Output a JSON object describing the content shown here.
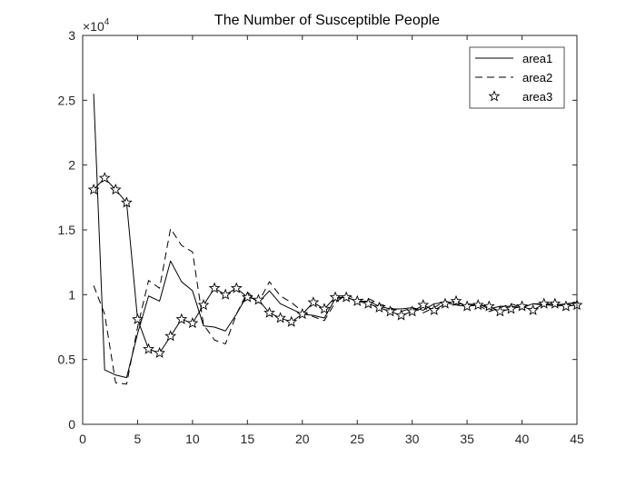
{
  "chart_data": {
    "type": "line",
    "title": "The Number of Susceptible People",
    "xlabel": "",
    "ylabel": "",
    "xlim": [
      0,
      45
    ],
    "ylim": [
      0,
      30000
    ],
    "xticks": [
      0,
      5,
      10,
      15,
      20,
      25,
      30,
      35,
      40,
      45
    ],
    "yticks": [
      0,
      5000,
      10000,
      15000,
      20000,
      25000,
      30000
    ],
    "ytick_labels": [
      "0",
      "0.5",
      "1",
      "1.5",
      "2",
      "2.5",
      "3"
    ],
    "y_exponent": {
      "base": "×10",
      "power": "4"
    },
    "legend_position": "top-right",
    "grid": false,
    "x": [
      1,
      2,
      3,
      4,
      5,
      6,
      7,
      8,
      9,
      10,
      11,
      12,
      13,
      14,
      15,
      16,
      17,
      18,
      19,
      20,
      21,
      22,
      23,
      24,
      25,
      26,
      27,
      28,
      29,
      30,
      31,
      32,
      33,
      34,
      35,
      36,
      37,
      38,
      39,
      40,
      41,
      42,
      43,
      44,
      45
    ],
    "series": [
      {
        "name": "area1",
        "style": "solid",
        "values": [
          25500,
          4200,
          3800,
          3600,
          7000,
          9900,
          9500,
          12600,
          11000,
          10300,
          7600,
          7500,
          7200,
          8500,
          10000,
          9400,
          10300,
          9300,
          8900,
          8500,
          8400,
          8200,
          9700,
          9800,
          9500,
          9500,
          9100,
          8900,
          8900,
          9000,
          8800,
          9300,
          9400,
          9200,
          9100,
          9300,
          8900,
          9100,
          9100,
          9000,
          9300,
          9200,
          9200,
          9300,
          9400
        ]
      },
      {
        "name": "area2",
        "style": "dashed",
        "values": [
          10700,
          8500,
          3200,
          3100,
          7500,
          11100,
          10500,
          15100,
          13800,
          13300,
          7700,
          6500,
          6200,
          8500,
          10200,
          9400,
          11000,
          9900,
          9400,
          8700,
          8300,
          8000,
          9400,
          10000,
          9600,
          9700,
          9300,
          9000,
          8700,
          9000,
          8600,
          9000,
          9500,
          9300,
          9300,
          9200,
          8700,
          9000,
          9300,
          9000,
          9300,
          9300,
          9100,
          9200,
          9500
        ]
      },
      {
        "name": "area3",
        "style": "star-markers",
        "values": [
          18100,
          19000,
          18100,
          17100,
          8100,
          5800,
          5500,
          6800,
          8100,
          7800,
          9200,
          10500,
          10000,
          10500,
          9800,
          9600,
          8600,
          8200,
          7900,
          8500,
          9400,
          8900,
          9800,
          9800,
          9500,
          9300,
          9000,
          8700,
          8400,
          8700,
          9200,
          8800,
          9300,
          9500,
          9100,
          9200,
          9100,
          8700,
          8900,
          9100,
          8800,
          9300,
          9300,
          9100,
          9200
        ]
      }
    ]
  }
}
